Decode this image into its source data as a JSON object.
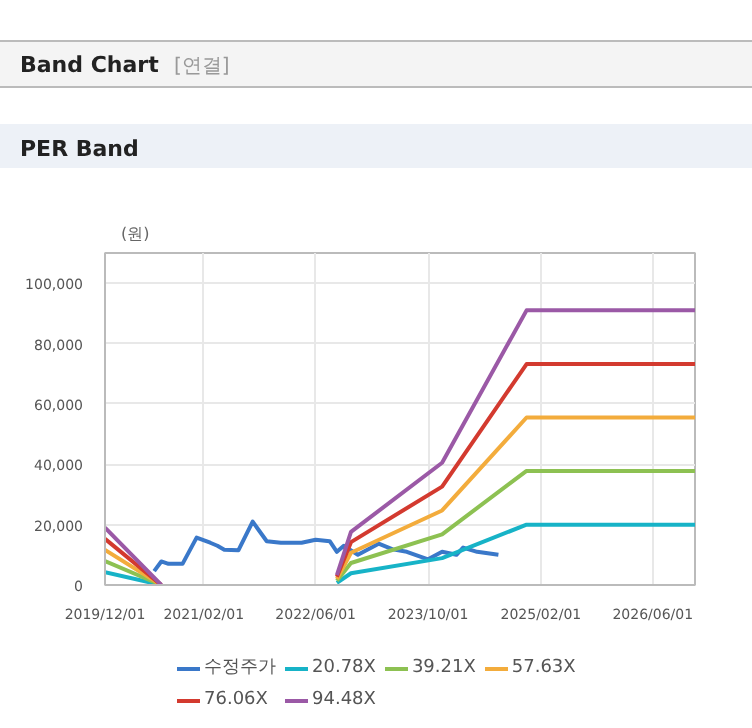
{
  "chart_data": {
    "type": "line",
    "title": "PER Band",
    "annotations": [
      "Band Chart",
      "[연결]"
    ],
    "ylabel": "(원)",
    "xlim": [
      "2019-12-01",
      "2026-12-01"
    ],
    "xticks": [
      {
        "value": "2019-12-01",
        "label": "2019/12/01"
      },
      {
        "value": "2021-02-01",
        "label": "2021/02/01"
      },
      {
        "value": "2022-06-01",
        "label": "2022/06/01"
      },
      {
        "value": "2023-10-01",
        "label": "2023/10/01"
      },
      {
        "value": "2025-02-01",
        "label": "2025/02/01"
      },
      {
        "value": "2026-06-01",
        "label": "2026/06/01"
      }
    ],
    "ylim": [
      0,
      110000
    ],
    "yticks": [
      {
        "value": 0,
        "label": "0"
      },
      {
        "value": 20000,
        "label": "20,000"
      },
      {
        "value": 40000,
        "label": "40,000"
      },
      {
        "value": 60000,
        "label": "60,000"
      },
      {
        "value": 80000,
        "label": "80,000"
      },
      {
        "value": 100000,
        "label": "100,000"
      }
    ],
    "grid": true,
    "legend": "bottom",
    "marker": "none",
    "line_style": "solid",
    "series": [
      {
        "name": "수정주가",
        "color": "#3a78c9",
        "x": [
          "2020-07",
          "2020-08",
          "2020-09",
          "2020-11",
          "2021-01",
          "2021-03",
          "2021-04",
          "2021-05",
          "2021-07",
          "2021-09",
          "2021-11",
          "2022-01",
          "2022-04",
          "2022-06",
          "2022-08",
          "2022-09",
          "2022-10",
          "2022-12",
          "2023-03",
          "2023-05",
          "2023-07",
          "2023-10",
          "2023-12",
          "2024-02",
          "2024-03",
          "2024-05",
          "2024-08"
        ],
        "values": [
          4600,
          7800,
          7000,
          7000,
          15700,
          14000,
          13000,
          11700,
          11500,
          21000,
          14500,
          14000,
          14000,
          15000,
          14500,
          11000,
          13000,
          10000,
          13700,
          11800,
          11000,
          8500,
          11000,
          10000,
          12400,
          11000,
          10000
        ]
      },
      {
        "name": "20.78X",
        "color": "#17b3c7",
        "x": [
          "2019-12",
          "2020-08",
          "2021-06",
          "2022-09",
          "2022-11",
          "2023-12",
          "2024-12",
          "2026-12"
        ],
        "values": [
          4200,
          0,
          null,
          700,
          3900,
          8900,
          20000,
          20000
        ]
      },
      {
        "name": "39.21X",
        "color": "#8dc152",
        "x": [
          "2019-12",
          "2020-08",
          "2021-06",
          "2022-09",
          "2022-11",
          "2023-12",
          "2024-12",
          "2026-12"
        ],
        "values": [
          7900,
          0,
          null,
          1400,
          7300,
          16800,
          37800,
          37800
        ]
      },
      {
        "name": "57.63X",
        "color": "#f3ac3c",
        "x": [
          "2019-12",
          "2020-08",
          "2021-06",
          "2022-09",
          "2022-11",
          "2023-12",
          "2024-12",
          "2026-12"
        ],
        "values": [
          11600,
          0,
          null,
          2000,
          10700,
          24700,
          55500,
          55500
        ]
      },
      {
        "name": "76.06X",
        "color": "#d33a2f",
        "x": [
          "2019-12",
          "2020-08",
          "2021-06",
          "2022-09",
          "2022-11",
          "2023-12",
          "2024-12",
          "2026-12"
        ],
        "values": [
          15300,
          0,
          null,
          2700,
          14200,
          32600,
          73200,
          73200
        ]
      },
      {
        "name": "94.48X",
        "color": "#9b59a6",
        "x": [
          "2019-12",
          "2020-08",
          "2021-06",
          "2022-09",
          "2022-11",
          "2023-12",
          "2024-12",
          "2026-12"
        ],
        "values": [
          19000,
          0,
          null,
          3300,
          17600,
          40500,
          91000,
          91000
        ]
      }
    ]
  }
}
